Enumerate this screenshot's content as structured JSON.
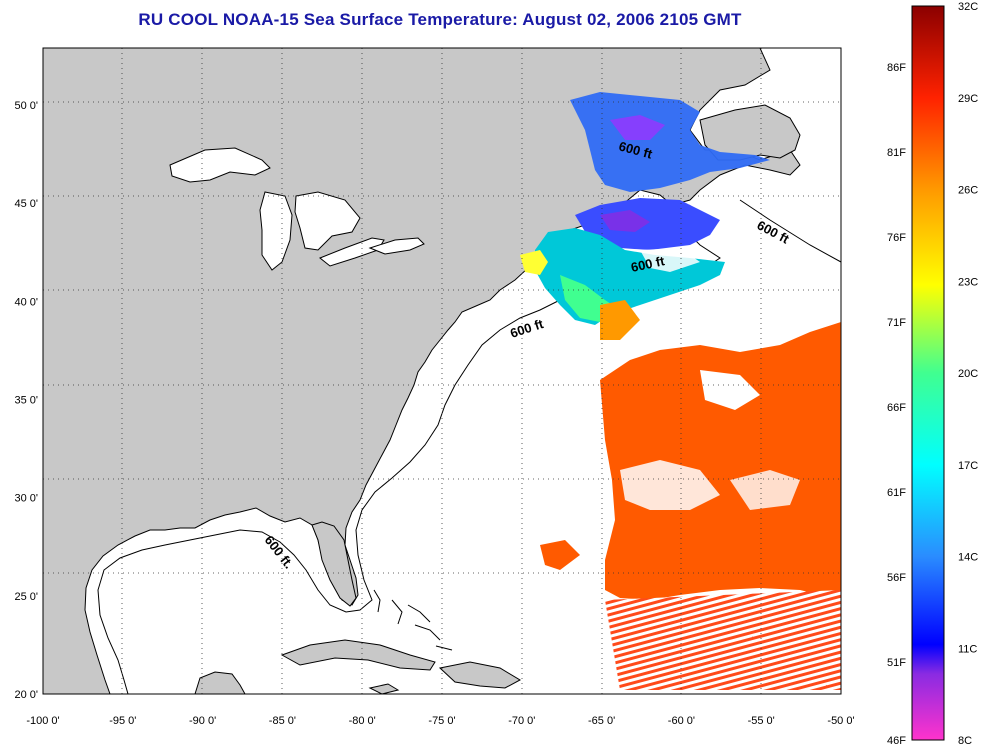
{
  "title": "RU COOL  NOAA-15  Sea Surface Temperature:  August 02, 2006 2105 GMT",
  "lon_ticks": [
    "-100 0'",
    "-95 0'",
    "-90 0'",
    "-85 0'",
    "-80 0'",
    "-75 0'",
    "-70 0'",
    "-65 0'",
    "-60 0'",
    "-55 0'",
    "-50 0'"
  ],
  "lat_ticks": [
    "50 0'",
    "45 0'",
    "40 0'",
    "35 0'",
    "30 0'",
    "25 0'",
    "20 0'"
  ],
  "contour_labels": [
    "600 ft",
    "600 ft",
    "600 ft",
    "600 ft",
    "600 ft."
  ],
  "colorbar": {
    "celsius": [
      "32C",
      "29C",
      "26C",
      "23C",
      "20C",
      "17C",
      "14C",
      "11C",
      "8C"
    ],
    "fahrenheit": [
      "86F",
      "81F",
      "76F",
      "71F",
      "66F",
      "61F",
      "56F",
      "51F",
      "46F"
    ],
    "range_c": [
      8,
      32
    ]
  },
  "colors": {
    "land": "#c8c8c8",
    "ocean": "#ffffff",
    "title": "#1a1aa6",
    "sst_warm": "#ff5a00",
    "sst_cool": "#2070ff"
  }
}
